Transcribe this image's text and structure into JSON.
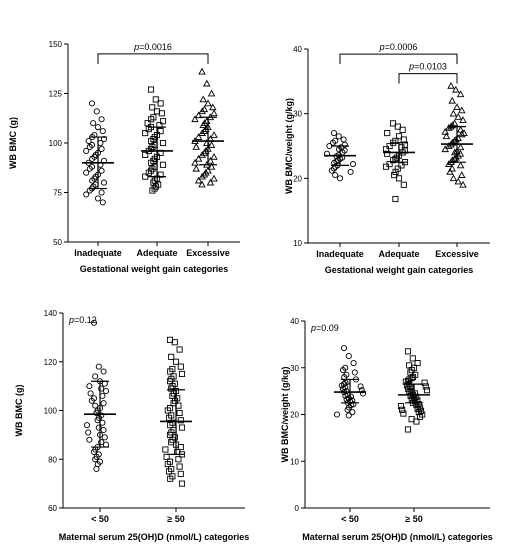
{
  "chart_data": [
    {
      "type": "scatter",
      "ylabel": "WB BMC (g)",
      "xlabel": "Gestational weight gain categories",
      "categories": [
        "Inadequate",
        "Adequate",
        "Excessive"
      ],
      "markers": [
        "circle",
        "square",
        "triangle"
      ],
      "ylim": [
        50,
        150
      ],
      "yticks": [
        50,
        75,
        100,
        125,
        150
      ],
      "grid": false,
      "series": [
        {
          "category": "Inadequate",
          "mean": 90,
          "sd_low": 77,
          "sd_high": 103,
          "values": [
            120,
            116,
            112,
            110,
            108,
            106,
            104,
            103,
            102,
            101,
            100,
            99,
            98,
            97,
            96,
            95,
            94,
            93,
            92,
            91,
            90,
            89,
            88,
            87,
            86,
            85,
            84,
            83,
            82,
            81,
            80,
            79,
            78,
            77,
            76,
            75,
            74,
            72,
            70
          ]
        },
        {
          "category": "Adequate",
          "mean": 96,
          "sd_low": 83,
          "sd_high": 108,
          "values": [
            127,
            122,
            120,
            118,
            116,
            115,
            113,
            112,
            111,
            110,
            109,
            108,
            107,
            106,
            105,
            104,
            103,
            102,
            101,
            100,
            99,
            98,
            97,
            96,
            95,
            94,
            93,
            92,
            91,
            90,
            89,
            88,
            87,
            86,
            85,
            84,
            83,
            82,
            81,
            80,
            79,
            78,
            77,
            76
          ]
        },
        {
          "category": "Excessive",
          "mean": 101,
          "sd_low": 89,
          "sd_high": 113,
          "values": [
            136,
            130,
            125,
            122,
            120,
            118,
            117,
            116,
            115,
            114,
            113,
            112,
            111,
            110,
            109,
            108,
            107,
            106,
            105,
            104,
            103,
            102,
            101,
            100,
            99,
            98,
            97,
            96,
            95,
            94,
            93,
            92,
            91,
            90,
            89,
            88,
            87,
            86,
            85,
            84,
            83,
            82,
            81,
            80,
            79
          ]
        }
      ],
      "annotations": [
        {
          "text": "p=0.0016",
          "from": "Inadequate",
          "to": "Excessive",
          "at": 145
        }
      ]
    },
    {
      "type": "scatter",
      "ylabel": "WB BMC/weight (g/kg)",
      "xlabel": "Gestational weight gain categories",
      "categories": [
        "Inadequate",
        "Adequate",
        "Excessive"
      ],
      "markers": [
        "circle",
        "square",
        "triangle"
      ],
      "ylim": [
        10,
        40
      ],
      "yticks": [
        10,
        20,
        30,
        40
      ],
      "grid": false,
      "series": [
        {
          "category": "Inadequate",
          "mean": 23.5,
          "sd_low": 22,
          "sd_high": 25,
          "values": [
            27,
            26.5,
            26,
            25.8,
            25.5,
            25.2,
            25,
            24.8,
            24.5,
            24.3,
            24,
            23.8,
            23.6,
            23.4,
            23.2,
            23,
            22.8,
            22.6,
            22.4,
            22.2,
            22,
            21.8,
            21.5,
            21.2,
            21,
            20.5,
            20
          ]
        },
        {
          "category": "Adequate",
          "mean": 24,
          "sd_low": 22.5,
          "sd_high": 25.5,
          "values": [
            28.5,
            28,
            27.5,
            27,
            26.5,
            26,
            25.8,
            25.5,
            25.2,
            25,
            24.8,
            24.5,
            24.3,
            24,
            23.8,
            23.5,
            23.2,
            23,
            22.8,
            22.5,
            22.2,
            22,
            21.8,
            21.5,
            21,
            20.5,
            20,
            19,
            16.8
          ]
        },
        {
          "category": "Excessive",
          "mean": 25.3,
          "sd_low": 22.5,
          "sd_high": 28,
          "values": [
            34.3,
            33.7,
            33,
            32,
            31,
            30.5,
            30,
            29.5,
            29,
            28.5,
            28.2,
            28,
            27.8,
            27.5,
            27.2,
            27,
            26.8,
            26.5,
            26.2,
            26,
            25.8,
            25.5,
            25.2,
            25,
            24.8,
            24.5,
            24.2,
            24,
            23.8,
            23.5,
            23.2,
            23,
            22.8,
            22.5,
            22.2,
            22,
            21.5,
            21,
            20.5,
            20,
            19.5,
            19
          ]
        }
      ],
      "annotations": [
        {
          "text": "p=0.0006",
          "from": "Inadequate",
          "to": "Excessive",
          "at": 39.2
        },
        {
          "text": "p=0.0103",
          "from": "Adequate",
          "to": "Excessive",
          "at": 36.2
        }
      ]
    },
    {
      "type": "scatter",
      "ylabel": "WB BMC (g)",
      "xlabel": "Maternal serum 25(OH)D (nmol/L) categories",
      "categories": [
        "< 50",
        "≥ 50"
      ],
      "markers": [
        "circle",
        "square"
      ],
      "ylim": [
        60,
        140
      ],
      "yticks": [
        60,
        80,
        100,
        120,
        140
      ],
      "grid": false,
      "series": [
        {
          "category": "< 50",
          "mean": 98.5,
          "sd_low": 85,
          "sd_high": 112,
          "values": [
            136,
            118,
            116,
            114,
            112,
            111,
            110,
            109,
            108,
            107,
            106,
            105,
            104,
            103,
            102,
            101,
            100,
            99,
            98,
            97,
            96,
            95,
            94,
            93,
            92,
            91,
            90,
            89,
            88,
            87,
            86,
            85,
            84,
            83,
            82,
            81,
            80,
            79,
            78,
            76
          ]
        },
        {
          "category": "≥ 50",
          "mean": 95.5,
          "sd_low": 82,
          "sd_high": 108.5,
          "values": [
            129,
            128,
            125,
            122,
            120,
            118,
            117,
            116,
            115,
            114,
            113,
            112,
            111,
            110,
            109,
            108,
            107,
            106,
            105,
            104,
            103,
            102,
            101,
            100,
            99,
            98,
            97,
            96,
            95,
            94,
            93,
            92,
            91,
            90,
            89,
            88,
            87,
            86,
            85,
            84,
            83,
            82,
            81,
            80,
            79,
            78,
            77,
            76,
            75,
            74,
            73,
            72,
            70
          ]
        }
      ],
      "annotations": [
        {
          "text": "p=0.12",
          "corner": "top-left"
        }
      ]
    },
    {
      "type": "scatter",
      "ylabel": "WB BMC/weight (g/kg)",
      "xlabel": "Maternal serum 25(OH)D (nmol/L) categories",
      "categories": [
        "< 50",
        "≥ 50"
      ],
      "markers": [
        "circle",
        "square"
      ],
      "ylim": [
        0,
        40
      ],
      "yticks": [
        0,
        10,
        20,
        30,
        40
      ],
      "grid": false,
      "series": [
        {
          "category": "< 50",
          "mean": 24.8,
          "sd_low": 22.5,
          "sd_high": 27.5,
          "values": [
            34.2,
            32.5,
            31,
            30,
            29.5,
            29,
            28.5,
            28,
            27.5,
            27,
            26.8,
            26.5,
            26.2,
            26,
            25.8,
            25.5,
            25.2,
            25,
            24.8,
            24.5,
            24.2,
            24,
            23.8,
            23.5,
            23.2,
            23,
            22.8,
            22.5,
            22.2,
            22,
            21.5,
            21,
            20.5,
            20,
            19.8
          ]
        },
        {
          "category": "≥ 50",
          "mean": 24.2,
          "sd_low": 22.5,
          "sd_high": 26.5,
          "values": [
            33.5,
            32,
            31,
            30.5,
            30,
            29.5,
            29,
            28.5,
            28,
            27.8,
            27.5,
            27.2,
            27,
            26.8,
            26.5,
            26.2,
            26,
            25.8,
            25.5,
            25.2,
            25,
            24.8,
            24.5,
            24.2,
            24,
            23.8,
            23.5,
            23.2,
            23,
            22.8,
            22.5,
            22.2,
            22,
            21.8,
            21.5,
            21.2,
            21,
            20.8,
            20.5,
            20.2,
            20,
            19.5,
            19,
            18.5,
            16.8
          ]
        }
      ],
      "annotations": [
        {
          "text": "p=0.09",
          "corner": "top-left"
        }
      ]
    }
  ]
}
